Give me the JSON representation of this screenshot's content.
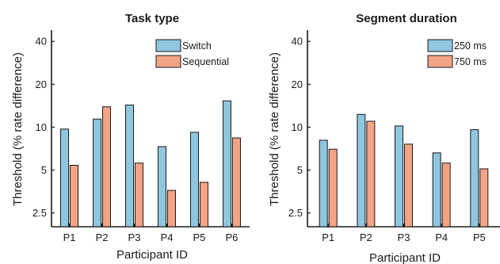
{
  "colors": {
    "series_a": "#8fc7df",
    "series_b": "#f2a485",
    "stroke": "#1a1a1a"
  },
  "chart_data": [
    {
      "type": "bar",
      "title": "Task type",
      "xlabel": "Participant ID",
      "ylabel": "Threshold (% rate difference)",
      "yscale": "log",
      "ylim": [
        2.0,
        48
      ],
      "yticks": [
        2.5,
        5,
        10,
        20,
        40
      ],
      "ytick_labels": [
        "2.5",
        "5",
        "10",
        "20",
        "40"
      ],
      "categories": [
        "P1",
        "P2",
        "P3",
        "P4",
        "P5",
        "P6"
      ],
      "legend_position": "top-right",
      "series": [
        {
          "name": "Switch",
          "values": [
            9.7,
            11.4,
            14.3,
            7.3,
            9.2,
            15.3
          ]
        },
        {
          "name": "Sequential",
          "values": [
            5.4,
            13.9,
            5.6,
            3.6,
            4.1,
            8.4
          ]
        }
      ]
    },
    {
      "type": "bar",
      "title": "Segment duration",
      "xlabel": "Participant ID",
      "ylabel": "Threshold (% rate difference)",
      "yscale": "log",
      "ylim": [
        2.0,
        48
      ],
      "yticks": [
        2.5,
        5,
        10,
        20,
        40
      ],
      "ytick_labels": [
        "2.5",
        "5",
        "10",
        "20",
        "40"
      ],
      "categories": [
        "P1",
        "P2",
        "P3",
        "P4",
        "P5"
      ],
      "legend_position": "top-right",
      "series": [
        {
          "name": "250 ms",
          "values": [
            8.1,
            12.3,
            10.2,
            6.6,
            9.6
          ]
        },
        {
          "name": "750 ms",
          "values": [
            7.0,
            11.0,
            7.6,
            5.6,
            5.1
          ]
        }
      ]
    }
  ]
}
